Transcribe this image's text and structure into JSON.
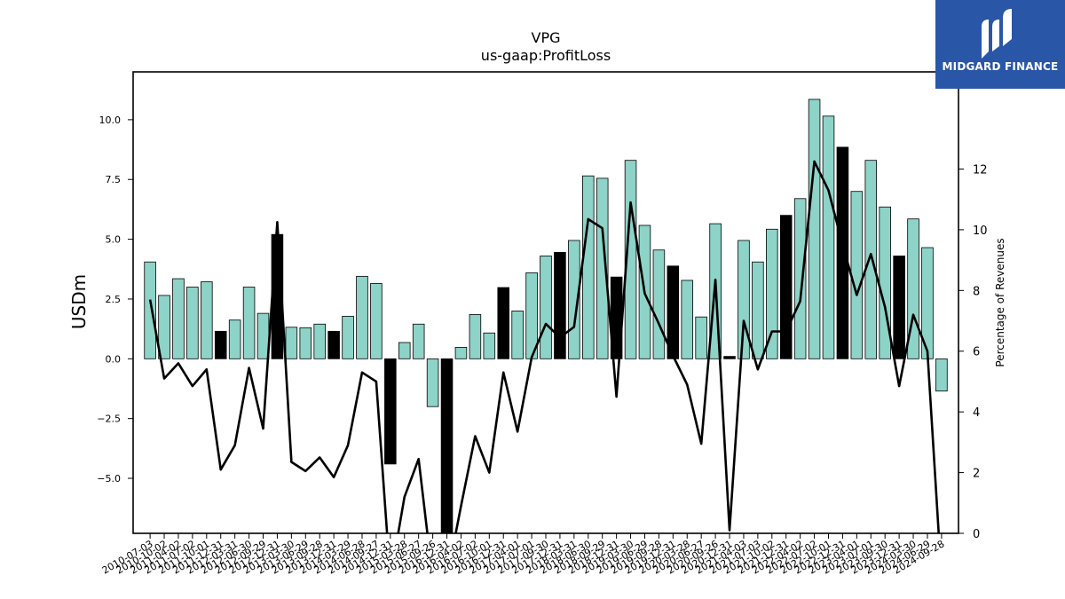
{
  "chart_data": {
    "type": "bar",
    "title": "VPG",
    "subtitle": "us-gaap:ProfitLoss",
    "ylabel": "USDm",
    "y2label": "Percentage of Revenues",
    "ylim": [
      -7.3,
      12.0
    ],
    "y2lim": [
      0,
      15.2
    ],
    "yticks": [
      "−5.0",
      "−2.5",
      "0.0",
      "2.5",
      "5.0",
      "7.5",
      "10.0"
    ],
    "yticks_values": [
      -5.0,
      -2.5,
      0.0,
      2.5,
      5.0,
      7.5,
      10.0
    ],
    "y2ticks": [
      "0",
      "2",
      "4",
      "6",
      "8",
      "10",
      "12"
    ],
    "y2ticks_values": [
      0,
      2,
      4,
      6,
      8,
      10,
      12
    ],
    "x_tick_labels": [
      "2010-07-03",
      "2010-10-02",
      "2011-04-02",
      "2011-07-02",
      "2011-10-01",
      "2011-12-31",
      "2012-03-31",
      "2012-06-30",
      "2012-09-29",
      "2012-12-31",
      "2013-03-30",
      "2013-06-29",
      "2013-09-28",
      "2013-12-31",
      "2014-03-29",
      "2014-06-28",
      "2014-09-27",
      "2014-12-31",
      "2015-03-28",
      "2015-06-27",
      "2015-09-26",
      "2016-12-31",
      "2016-04-02",
      "2016-07-02",
      "2016-10-01",
      "2016-12-31",
      "2017-04-01",
      "2017-07-01",
      "2017-09-30",
      "2017-12-31",
      "2018-03-31",
      "2018-06-30",
      "2018-09-29",
      "2018-12-31",
      "2019-03-30",
      "2019-06-29",
      "2019-09-28",
      "2019-12-31",
      "2020-03-28",
      "2020-06-27",
      "2020-09-26",
      "2020-12-31",
      "2021-04-03",
      "2021-07-03",
      "2021-10-02",
      "2021-12-31",
      "2022-04-02",
      "2022-07-02",
      "2022-10-01",
      "2022-12-31",
      "2023-04-01",
      "2023-07-01",
      "2023-09-30",
      "2023-12-31",
      "2024-03-30",
      "2024-06-29",
      "2024-09-28"
    ],
    "series": [
      {
        "type": "bar",
        "values": [
          4.05,
          2.65,
          3.35,
          3.0,
          3.22,
          1.15,
          1.62,
          3.0,
          1.9,
          5.2,
          1.32,
          1.3,
          1.45,
          1.15,
          1.78,
          3.45,
          3.15,
          -4.4,
          0.68,
          1.45,
          -2.0,
          -7.3,
          0.48,
          1.85,
          1.08,
          2.98,
          2.0,
          3.6,
          4.3,
          4.45,
          4.95,
          7.65,
          7.55,
          3.42,
          8.3,
          5.58,
          4.55,
          3.88,
          3.28,
          1.75,
          5.65,
          0.1,
          4.95,
          4.05,
          5.42,
          6.0,
          6.7,
          10.85,
          10.15,
          8.85,
          7.0,
          8.3,
          6.35,
          4.3,
          5.85,
          4.65,
          -1.35
        ],
        "dark": [
          false,
          false,
          false,
          false,
          false,
          true,
          false,
          false,
          false,
          true,
          false,
          false,
          false,
          true,
          false,
          false,
          false,
          true,
          false,
          false,
          false,
          true,
          false,
          false,
          false,
          true,
          false,
          false,
          false,
          true,
          false,
          false,
          false,
          true,
          false,
          false,
          false,
          true,
          false,
          false,
          false,
          true,
          false,
          false,
          false,
          true,
          false,
          false,
          false,
          true,
          false,
          false,
          false,
          true,
          false,
          false,
          false
        ]
      },
      {
        "type": "line",
        "values": [
          7.7,
          5.1,
          5.6,
          4.85,
          5.4,
          2.1,
          2.9,
          5.45,
          3.45,
          10.25,
          2.35,
          2.05,
          2.5,
          1.85,
          2.9,
          5.3,
          5.0,
          -1.5,
          1.2,
          2.45,
          -1.5,
          -1.5,
          0.9,
          3.2,
          2.0,
          5.3,
          3.35,
          5.8,
          6.9,
          6.45,
          6.8,
          10.35,
          10.05,
          4.5,
          10.9,
          7.9,
          6.9,
          5.85,
          4.9,
          2.95,
          8.35,
          0.1,
          7.0,
          5.4,
          6.65,
          6.65,
          7.65,
          12.25,
          11.3,
          9.5,
          7.85,
          9.2,
          7.45,
          4.85,
          7.2,
          6.0,
          -1.5
        ]
      }
    ],
    "bar_color": "#8dd3c7",
    "bar_highlight_color": "#000000",
    "line_color": "#000000"
  },
  "logo": {
    "name": "MIDGARD FINANCE",
    "background": "#2a56a8"
  }
}
